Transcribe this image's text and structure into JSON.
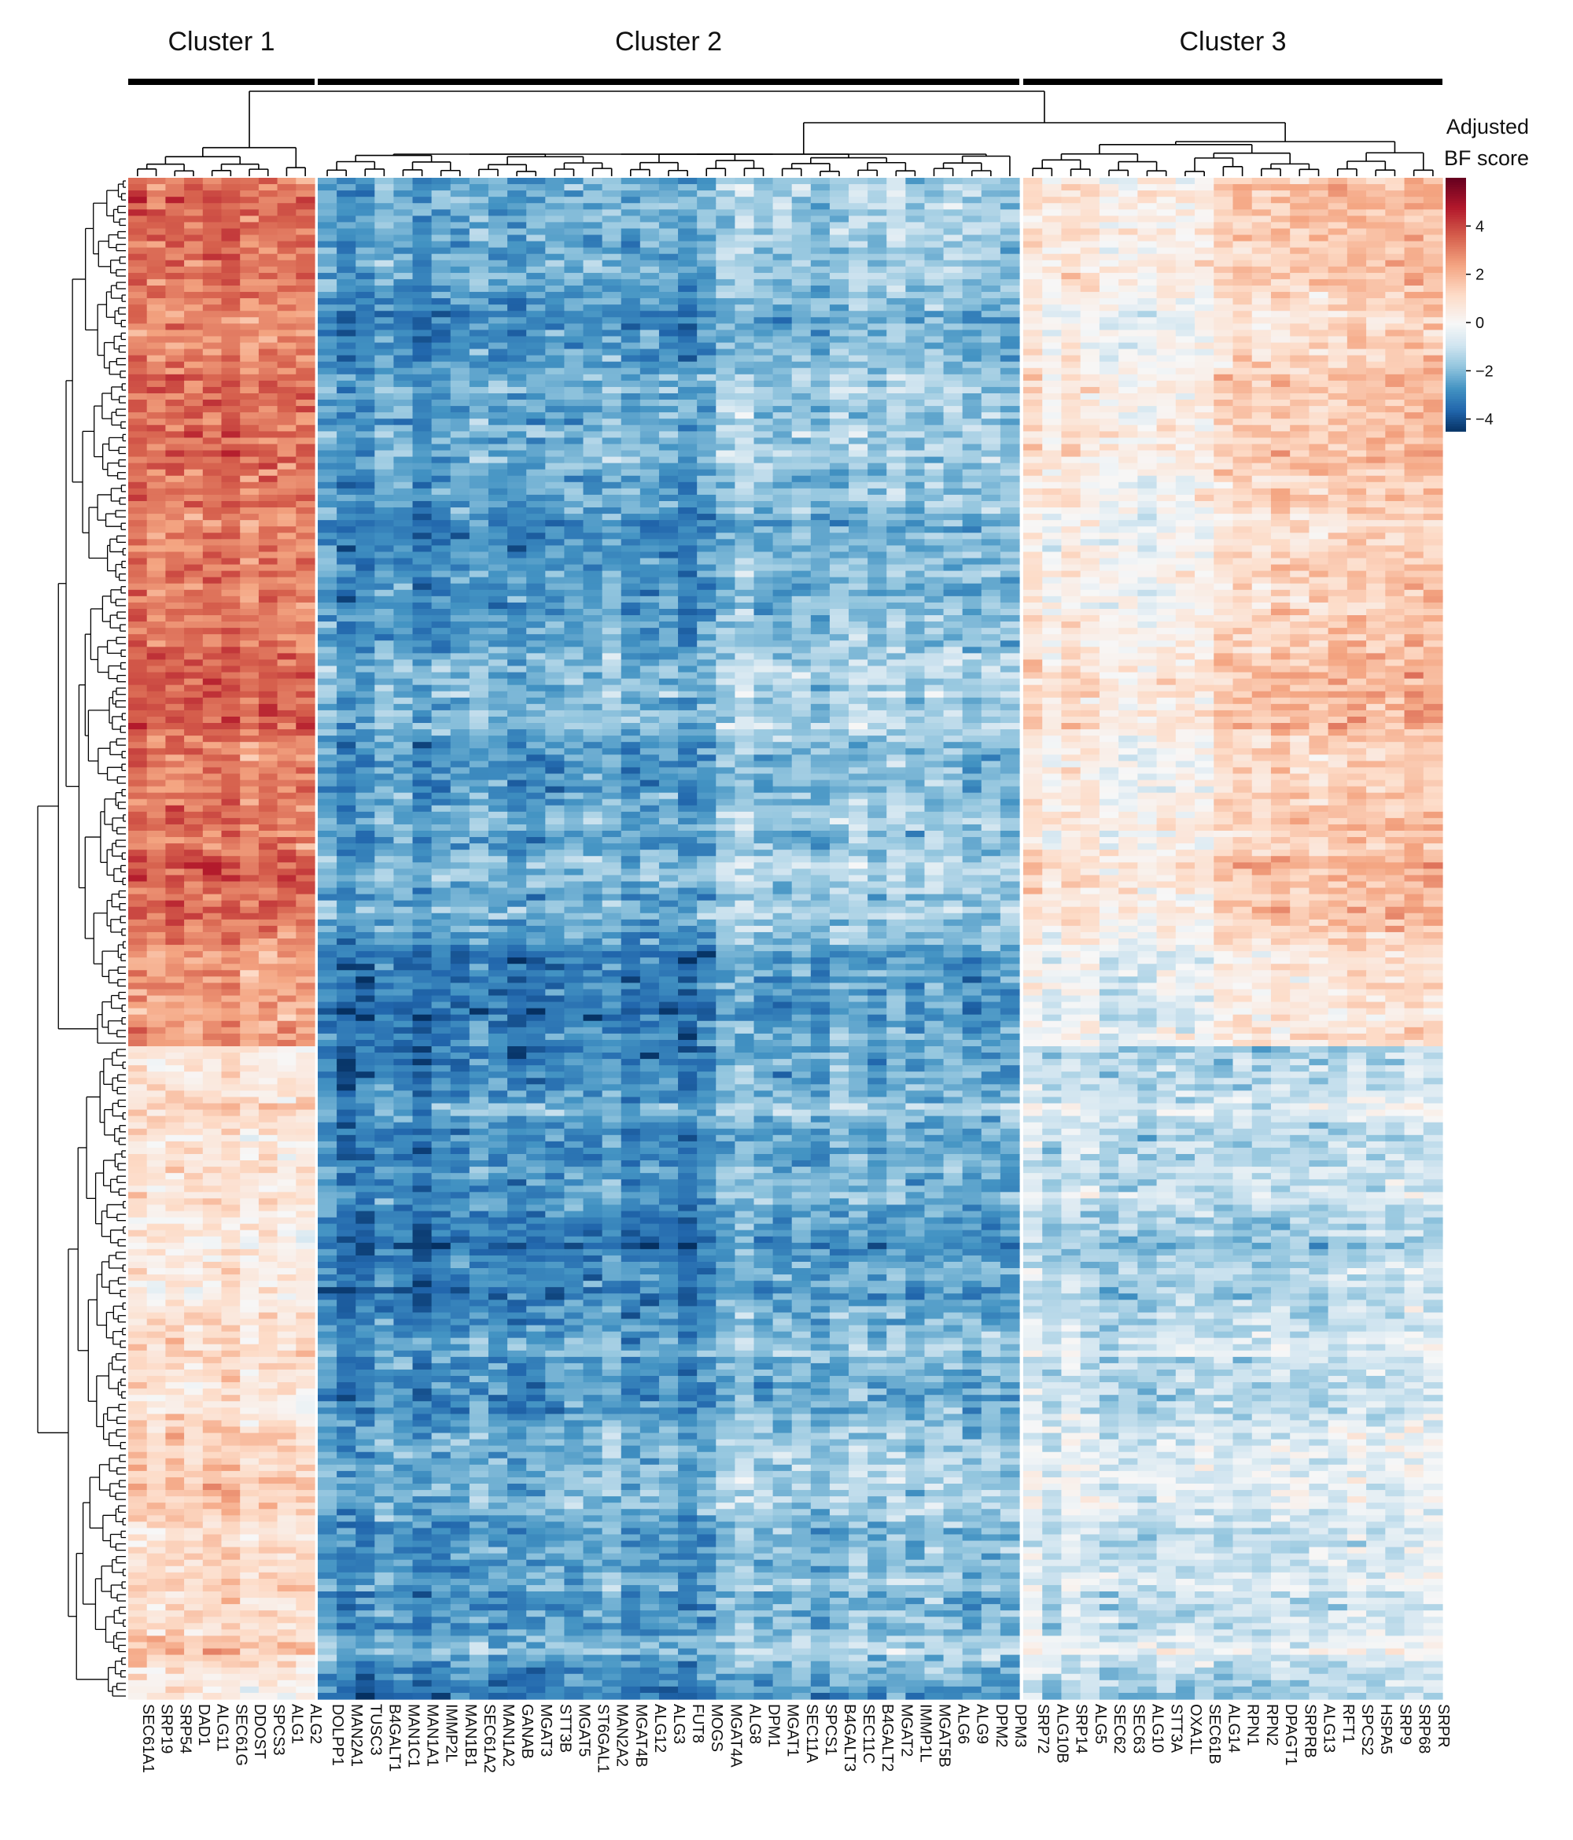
{
  "chart_data": {
    "type": "heatmap",
    "colorbar": {
      "title_lines": [
        "Adjusted",
        "BF score"
      ],
      "ticks": [
        4,
        2,
        0,
        -2,
        -4
      ],
      "range": [
        -4.5,
        6
      ],
      "colors": [
        "#053061",
        "#2166ac",
        "#4393c3",
        "#92c5de",
        "#d1e5f0",
        "#f7f7f7",
        "#fddbc7",
        "#f4a582",
        "#d6604d",
        "#b2182b",
        "#67001f"
      ]
    },
    "clusters": [
      {
        "label": "Cluster 1",
        "base_level": 3.0,
        "genes": [
          "SEC61A1",
          "SRP19",
          "SRP54",
          "DAD1",
          "ALG11",
          "SEC61G",
          "DDOST",
          "SPCS3",
          "ALG1",
          "ALG2"
        ]
      },
      {
        "label": "Cluster 2",
        "base_level": -2.4,
        "genes": [
          "DOLPP1",
          "MAN2A1",
          "TUSC3",
          "B4GALT1",
          "MAN1C1",
          "MAN1A1",
          "IMMP2L",
          "MAN1B1",
          "SEC61A2",
          "MAN1A2",
          "GANAB",
          "MGAT3",
          "STT3B",
          "MGAT5",
          "ST6GAL1",
          "MAN2A2",
          "MGAT4B",
          "ALG12",
          "ALG3",
          "FUT8",
          "MOGS",
          "MGAT4A",
          "ALG8",
          "DPM1",
          "MGAT1",
          "SEC11A",
          "SPCS1",
          "B4GALT3",
          "SEC11C",
          "B4GALT2",
          "MGAT2",
          "IMMP1L",
          "MGAT5B",
          "ALG6",
          "ALG9",
          "DPM2",
          "DPM3"
        ]
      },
      {
        "label": "Cluster 3",
        "base_level": -0.4,
        "genes": [
          "SRP72",
          "ALG10B",
          "SRP14",
          "ALG5",
          "SEC62",
          "SEC63",
          "ALG10",
          "STT3A",
          "OXA1L",
          "SEC61B",
          "ALG14",
          "RPN1",
          "RPN2",
          "DPAGT1",
          "SRPRB",
          "ALG13",
          "RFT1",
          "SPCS2",
          "HSPA5",
          "SRP9",
          "SRP68",
          "SRPR"
        ]
      }
    ],
    "row_count": 240,
    "row_group_split_fraction": 0.57,
    "row_groups": [
      {
        "cluster_levels": [
          3.2,
          -2.6,
          0.3
        ]
      },
      {
        "cluster_levels": [
          0.9,
          -2.9,
          -1.1
        ]
      }
    ]
  }
}
